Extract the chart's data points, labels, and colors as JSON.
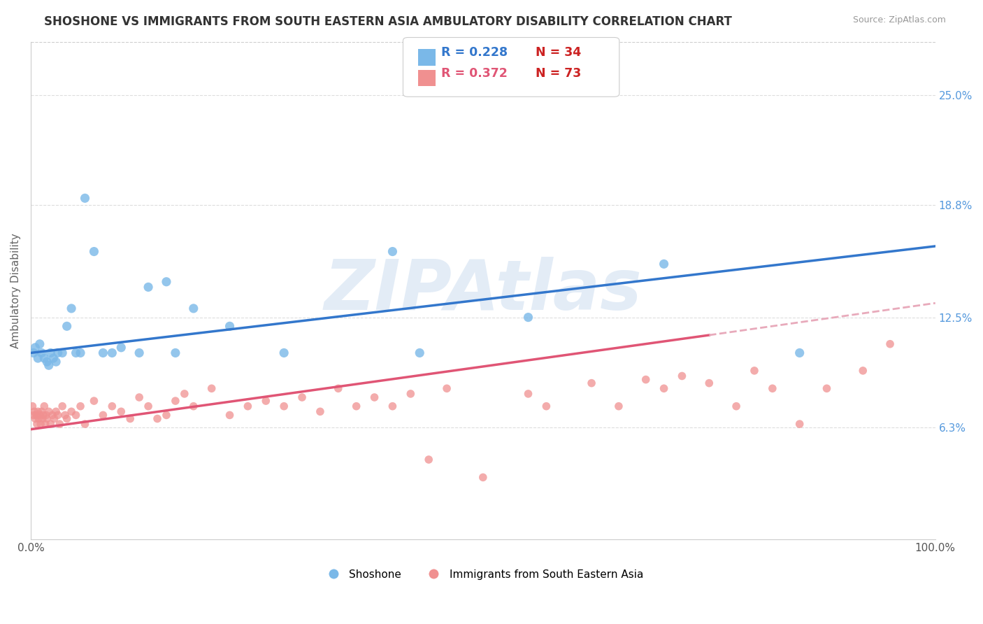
{
  "title": "SHOSHONE VS IMMIGRANTS FROM SOUTH EASTERN ASIA AMBULATORY DISABILITY CORRELATION CHART",
  "source": "Source: ZipAtlas.com",
  "ylabel": "Ambulatory Disability",
  "right_yticks": [
    6.3,
    12.5,
    18.8,
    25.0
  ],
  "right_ytick_labels": [
    "6.3%",
    "12.5%",
    "18.8%",
    "25.0%"
  ],
  "legend_label1": "Shoshone",
  "legend_label2": "Immigrants from South Eastern Asia",
  "R1": 0.228,
  "N1": 34,
  "R2": 0.372,
  "N2": 73,
  "watermark": "ZIPAtlas",
  "color_blue": "#7ab8e8",
  "color_pink": "#f09090",
  "color_blue_line": "#3377cc",
  "color_pink_line": "#e05575",
  "color_pink_dash": "#e8aabb",
  "xlim": [
    0,
    100
  ],
  "ylim": [
    0,
    28
  ],
  "shoshone_x": [
    0.3,
    0.5,
    0.8,
    1.0,
    1.2,
    1.5,
    1.8,
    2.0,
    2.2,
    2.5,
    2.8,
    3.0,
    3.5,
    4.0,
    4.5,
    5.0,
    5.5,
    6.0,
    7.0,
    8.0,
    9.0,
    10.0,
    12.0,
    13.0,
    15.0,
    16.0,
    18.0,
    22.0,
    28.0,
    40.0,
    43.0,
    55.0,
    70.0,
    85.0
  ],
  "shoshone_y": [
    10.5,
    10.8,
    10.2,
    11.0,
    10.5,
    10.2,
    10.0,
    9.8,
    10.5,
    10.2,
    10.0,
    10.5,
    10.5,
    12.0,
    13.0,
    10.5,
    10.5,
    19.2,
    16.2,
    10.5,
    10.5,
    10.8,
    10.5,
    14.2,
    14.5,
    10.5,
    13.0,
    12.0,
    10.5,
    16.2,
    10.5,
    12.5,
    15.5,
    10.5
  ],
  "immigrants_x": [
    0.2,
    0.3,
    0.4,
    0.5,
    0.6,
    0.7,
    0.8,
    0.9,
    1.0,
    1.1,
    1.2,
    1.3,
    1.4,
    1.5,
    1.6,
    1.7,
    1.8,
    2.0,
    2.2,
    2.4,
    2.6,
    2.8,
    3.0,
    3.2,
    3.5,
    3.8,
    4.0,
    4.5,
    5.0,
    5.5,
    6.0,
    7.0,
    8.0,
    9.0,
    10.0,
    11.0,
    12.0,
    13.0,
    14.0,
    15.0,
    16.0,
    17.0,
    18.0,
    20.0,
    22.0,
    24.0,
    26.0,
    28.0,
    30.0,
    32.0,
    34.0,
    36.0,
    38.0,
    40.0,
    42.0,
    44.0,
    46.0,
    50.0,
    55.0,
    57.0,
    62.0,
    65.0,
    68.0,
    70.0,
    72.0,
    75.0,
    78.0,
    80.0,
    82.0,
    85.0,
    88.0,
    92.0,
    95.0
  ],
  "immigrants_y": [
    7.5,
    7.0,
    7.2,
    6.8,
    7.0,
    6.5,
    7.2,
    6.8,
    7.0,
    6.5,
    7.2,
    6.8,
    7.0,
    7.5,
    6.5,
    7.0,
    6.8,
    7.2,
    6.5,
    7.0,
    6.8,
    7.2,
    7.0,
    6.5,
    7.5,
    7.0,
    6.8,
    7.2,
    7.0,
    7.5,
    6.5,
    7.8,
    7.0,
    7.5,
    7.2,
    6.8,
    8.0,
    7.5,
    6.8,
    7.0,
    7.8,
    8.2,
    7.5,
    8.5,
    7.0,
    7.5,
    7.8,
    7.5,
    8.0,
    7.2,
    8.5,
    7.5,
    8.0,
    7.5,
    8.2,
    4.5,
    8.5,
    3.5,
    8.2,
    7.5,
    8.8,
    7.5,
    9.0,
    8.5,
    9.2,
    8.8,
    7.5,
    9.5,
    8.5,
    6.5,
    8.5,
    9.5,
    11.0
  ],
  "blue_line_x0": 0,
  "blue_line_y0": 10.5,
  "blue_line_x1": 100,
  "blue_line_y1": 16.5,
  "pink_line_x0": 0,
  "pink_line_y0": 6.2,
  "pink_line_x1": 75,
  "pink_line_y1": 11.5,
  "pink_dash_x0": 75,
  "pink_dash_y0": 11.5,
  "pink_dash_x1": 100,
  "pink_dash_y1": 13.3
}
